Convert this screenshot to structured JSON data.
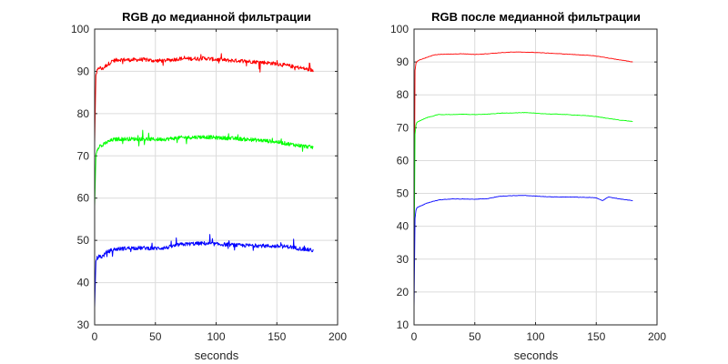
{
  "chart_data": [
    {
      "type": "line",
      "title": "RGB до медианной фильтрации",
      "xlabel": "seconds",
      "ylabel": "",
      "xlim": [
        0,
        200
      ],
      "ylim": [
        30,
        100
      ],
      "xticks": [
        "0",
        "50",
        "100",
        "150",
        "200"
      ],
      "yticks": [
        "30",
        "40",
        "50",
        "60",
        "70",
        "80",
        "90",
        "100"
      ],
      "grid": true,
      "noisy": true,
      "series": [
        {
          "color": "#ff0000",
          "x": [
            0,
            1,
            2,
            4,
            6,
            8,
            10,
            15,
            20,
            30,
            40,
            50,
            60,
            70,
            80,
            90,
            100,
            110,
            120,
            130,
            140,
            150,
            160,
            170,
            180
          ],
          "y": [
            73,
            89,
            90,
            91,
            90.5,
            91,
            91.5,
            92.5,
            92.8,
            92.7,
            92.8,
            92.5,
            92.6,
            93,
            93,
            93.1,
            92.8,
            92.6,
            92.5,
            92.3,
            92.1,
            91.8,
            91.3,
            90.8,
            90.2
          ]
        },
        {
          "color": "#00ff00",
          "x": [
            0,
            1,
            2,
            4,
            6,
            8,
            10,
            15,
            20,
            30,
            40,
            50,
            60,
            70,
            80,
            90,
            100,
            110,
            120,
            130,
            140,
            150,
            160,
            170,
            180
          ],
          "y": [
            58,
            70,
            71.5,
            72.5,
            72.3,
            72.8,
            73.2,
            73.8,
            74,
            74,
            74,
            73.9,
            74,
            74.3,
            74.4,
            74.5,
            74.3,
            74.2,
            74,
            73.8,
            73.6,
            73.3,
            72.8,
            72.4,
            72
          ]
        },
        {
          "color": "#0000ff",
          "x": [
            0,
            1,
            2,
            4,
            6,
            8,
            10,
            15,
            20,
            30,
            40,
            50,
            60,
            70,
            80,
            90,
            100,
            110,
            120,
            130,
            140,
            150,
            160,
            170,
            180
          ],
          "y": [
            34,
            45,
            45.8,
            46.3,
            46.1,
            46.6,
            47.2,
            47.8,
            48,
            48.2,
            48.2,
            48.1,
            48.3,
            49,
            49.2,
            49.3,
            49.1,
            49,
            48.8,
            48.8,
            48.7,
            48.6,
            48.5,
            48,
            47.6
          ]
        }
      ]
    },
    {
      "type": "line",
      "title": "RGB после медианной фильтрации",
      "xlabel": "seconds",
      "ylabel": "",
      "xlim": [
        0,
        200
      ],
      "ylim": [
        10,
        100
      ],
      "xticks": [
        "0",
        "50",
        "100",
        "150",
        "200"
      ],
      "yticks": [
        "10",
        "20",
        "30",
        "40",
        "50",
        "60",
        "70",
        "80",
        "90",
        "100"
      ],
      "grid": true,
      "noisy": false,
      "series": [
        {
          "color": "#ff0000",
          "x": [
            0,
            0.5,
            1,
            2,
            4,
            6,
            10,
            15,
            20,
            30,
            40,
            50,
            60,
            70,
            80,
            90,
            100,
            110,
            120,
            130,
            140,
            150,
            160,
            170,
            180
          ],
          "y": [
            30,
            85,
            89,
            90,
            90.5,
            90.8,
            91.3,
            92,
            92.3,
            92.4,
            92.5,
            92.3,
            92.5,
            92.8,
            93,
            93,
            92.9,
            92.7,
            92.5,
            92.3,
            92.1,
            91.8,
            91.2,
            90.6,
            90
          ]
        },
        {
          "color": "#00ff00",
          "x": [
            0,
            0.5,
            1,
            2,
            4,
            6,
            10,
            15,
            20,
            30,
            40,
            50,
            60,
            70,
            80,
            90,
            100,
            110,
            120,
            130,
            140,
            150,
            160,
            170,
            180
          ],
          "y": [
            25,
            65,
            70,
            71.5,
            72,
            72.3,
            73,
            73.5,
            74,
            74,
            74.1,
            74,
            74.1,
            74.4,
            74.5,
            74.6,
            74.4,
            74.2,
            74.1,
            73.9,
            73.7,
            73.4,
            72.8,
            72.3,
            71.9
          ]
        },
        {
          "color": "#0000ff",
          "x": [
            0,
            0.5,
            1,
            2,
            4,
            6,
            10,
            15,
            20,
            30,
            40,
            50,
            60,
            70,
            80,
            90,
            100,
            110,
            120,
            130,
            140,
            150,
            155,
            160,
            170,
            180
          ],
          "y": [
            14,
            40,
            44,
            45.5,
            46,
            46.2,
            47,
            47.5,
            48,
            48.3,
            48.3,
            48.2,
            48.4,
            49.1,
            49.3,
            49.4,
            49.2,
            49,
            48.9,
            48.9,
            48.8,
            48.7,
            47.8,
            48.9,
            48.3,
            47.8
          ]
        }
      ]
    }
  ]
}
